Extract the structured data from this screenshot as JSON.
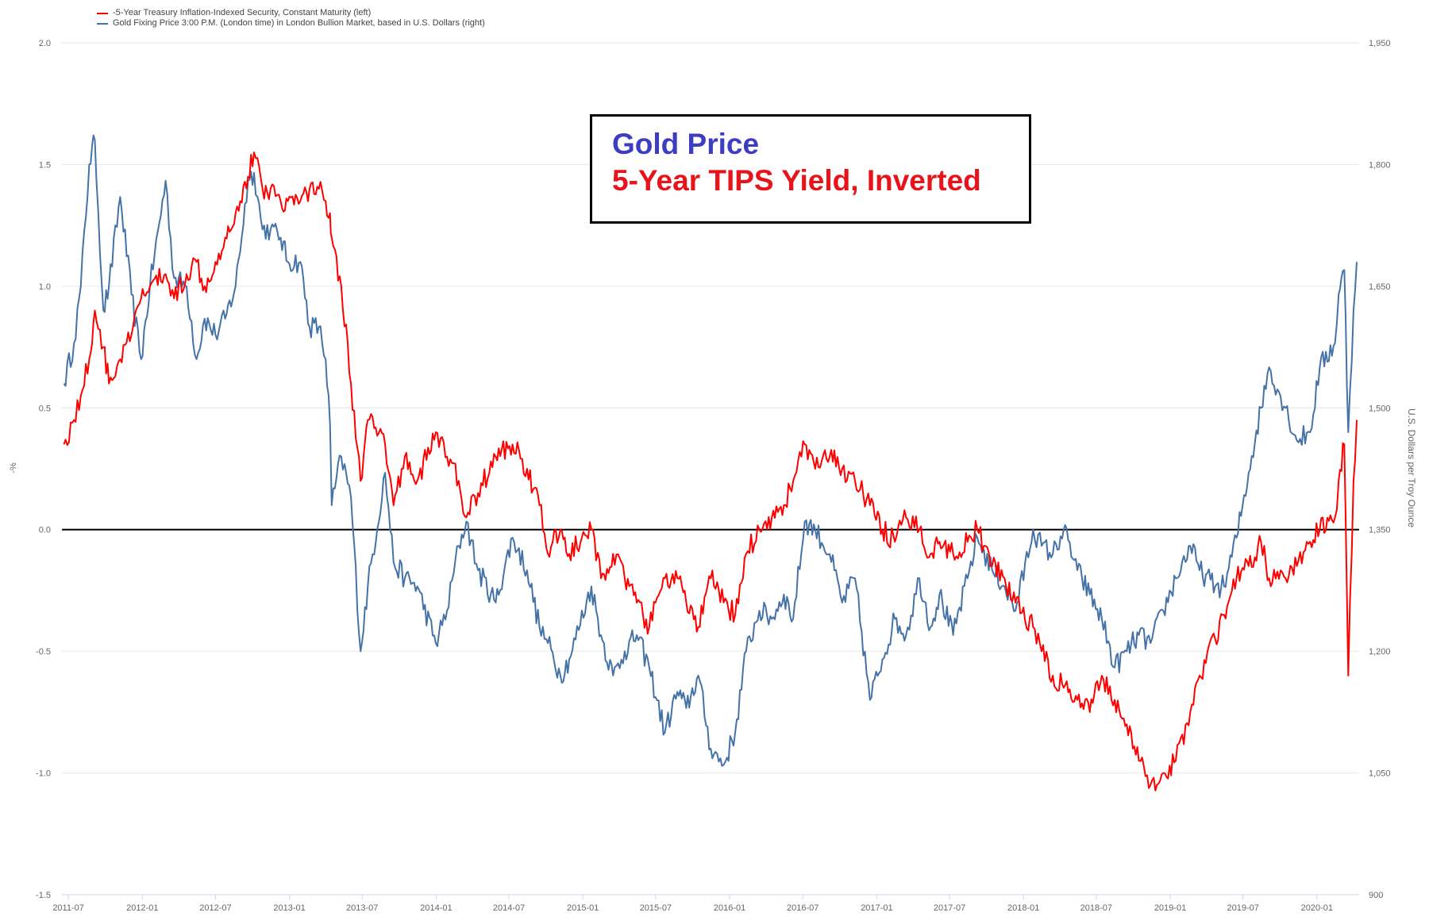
{
  "chart_data": {
    "type": "line",
    "title": "",
    "legend_position": "top-left",
    "series": [
      {
        "name": "-5-Year Treasury Inflation-Indexed Security, Constant Maturity (left)",
        "axis": "left",
        "color": "#ff0000"
      },
      {
        "name": "Gold Fixing Price 3:00 P.M. (London time) in London Bullion Market, based in U.S. Dollars (right)",
        "axis": "right",
        "color": "#4572a7"
      }
    ],
    "left_axis": {
      "label": "-%",
      "range": [
        -1.5,
        2.0
      ],
      "ticks": [
        "2.0",
        "1.5",
        "1.0",
        "0.5",
        "0.0",
        "-0.5",
        "-1.0",
        "-1.5"
      ],
      "tick_values": [
        2.0,
        1.5,
        1.0,
        0.5,
        0.0,
        -0.5,
        -1.0,
        -1.5
      ]
    },
    "right_axis": {
      "label": "U.S. Dollars per Troy Ounce",
      "range": [
        900,
        1950
      ],
      "ticks": [
        "1,950",
        "1,800",
        "1,650",
        "1,500",
        "1,350",
        "1,200",
        "1,050",
        "900"
      ],
      "tick_values": [
        1950,
        1800,
        1650,
        1500,
        1350,
        1200,
        1050,
        900
      ]
    },
    "x_axis": {
      "range": [
        "2011-06-15",
        "2020-04-15"
      ],
      "ticks": [
        "2011-07",
        "2012-01",
        "2012-07",
        "2013-01",
        "2013-07",
        "2014-01",
        "2014-07",
        "2015-01",
        "2015-07",
        "2016-01",
        "2016-07",
        "2017-01",
        "2017-07",
        "2018-01",
        "2018-07",
        "2019-01",
        "2019-07",
        "2020-01"
      ]
    },
    "zero_line": true,
    "grid": "horizontal",
    "data": {
      "dates": [
        "2011-06-20",
        "2011-07-15",
        "2011-08-01",
        "2011-08-22",
        "2011-09-05",
        "2011-09-26",
        "2011-10-10",
        "2011-11-07",
        "2011-12-05",
        "2011-12-29",
        "2012-01-20",
        "2012-02-28",
        "2012-03-20",
        "2012-04-20",
        "2012-05-15",
        "2012-06-04",
        "2012-07-01",
        "2012-07-25",
        "2012-08-20",
        "2012-09-20",
        "2012-10-05",
        "2012-10-26",
        "2012-11-15",
        "2012-12-10",
        "2012-12-28",
        "2013-01-28",
        "2013-02-20",
        "2013-03-15",
        "2013-04-01",
        "2013-04-12",
        "2013-04-16",
        "2013-05-10",
        "2013-06-03",
        "2013-06-27",
        "2013-07-15",
        "2013-08-27",
        "2013-09-17",
        "2013-10-15",
        "2013-11-15",
        "2013-12-31",
        "2014-01-28",
        "2014-02-26",
        "2014-03-17",
        "2014-04-15",
        "2014-05-29",
        "2014-07-10",
        "2014-08-15",
        "2014-09-15",
        "2014-10-06",
        "2014-11-06",
        "2014-11-28",
        "2015-01-22",
        "2015-02-15",
        "2015-03-17",
        "2015-04-15",
        "2015-05-15",
        "2015-06-15",
        "2015-07-24",
        "2015-08-24",
        "2015-09-15",
        "2015-10-15",
        "2015-11-15",
        "2015-12-17",
        "2016-01-15",
        "2016-02-11",
        "2016-03-15",
        "2016-04-15",
        "2016-05-15",
        "2016-06-07",
        "2016-07-06",
        "2016-08-01",
        "2016-09-06",
        "2016-10-07",
        "2016-11-08",
        "2016-12-15",
        "2017-01-15",
        "2017-02-15",
        "2017-03-15",
        "2017-04-17",
        "2017-05-15",
        "2017-06-06",
        "2017-07-10",
        "2017-08-15",
        "2017-09-08",
        "2017-10-15",
        "2017-11-15",
        "2017-12-12",
        "2018-01-25",
        "2018-02-15",
        "2018-03-15",
        "2018-04-11",
        "2018-05-15",
        "2018-06-15",
        "2018-07-15",
        "2018-08-16",
        "2018-09-15",
        "2018-10-15",
        "2018-11-13",
        "2018-12-15",
        "2019-01-15",
        "2019-02-20",
        "2019-03-15",
        "2019-04-23",
        "2019-05-15",
        "2019-06-15",
        "2019-07-15",
        "2019-08-15",
        "2019-09-04",
        "2019-10-15",
        "2019-11-12",
        "2019-12-15",
        "2020-01-08",
        "2020-02-15",
        "2020-02-24",
        "2020-03-09",
        "2020-03-19",
        "2020-04-01",
        "2020-04-09"
      ],
      "neg_tips_yield_pct": [
        0.35,
        0.45,
        0.55,
        0.7,
        0.9,
        0.75,
        0.6,
        0.7,
        0.8,
        0.95,
        1.0,
        1.05,
        0.95,
        1.05,
        1.1,
        1.0,
        1.1,
        1.2,
        1.3,
        1.45,
        1.55,
        1.4,
        1.4,
        1.35,
        1.35,
        1.35,
        1.4,
        1.4,
        1.35,
        1.3,
        1.2,
        1.0,
        0.6,
        0.2,
        0.45,
        0.35,
        0.1,
        0.3,
        0.2,
        0.4,
        0.3,
        0.2,
        0.05,
        0.15,
        0.3,
        0.35,
        0.25,
        0.1,
        -0.1,
        0.0,
        -0.1,
        0.0,
        -0.2,
        -0.1,
        -0.2,
        -0.3,
        -0.4,
        -0.2,
        -0.2,
        -0.3,
        -0.4,
        -0.2,
        -0.3,
        -0.35,
        -0.1,
        0.0,
        0.05,
        0.1,
        0.2,
        0.35,
        0.25,
        0.3,
        0.25,
        0.2,
        0.1,
        0.0,
        -0.05,
        0.05,
        0.0,
        -0.1,
        -0.05,
        -0.1,
        -0.05,
        0.0,
        -0.15,
        -0.2,
        -0.3,
        -0.4,
        -0.5,
        -0.6,
        -0.65,
        -0.7,
        -0.75,
        -0.6,
        -0.7,
        -0.8,
        -0.95,
        -1.05,
        -1.0,
        -0.95,
        -0.75,
        -0.6,
        -0.45,
        -0.35,
        -0.2,
        -0.15,
        -0.05,
        -0.2,
        -0.2,
        -0.15,
        -0.05,
        0.0,
        0.05,
        0.2,
        0.35,
        -0.6,
        0.2,
        0.45
      ],
      "gold_usd": [
        1530,
        1580,
        1650,
        1800,
        1830,
        1620,
        1650,
        1760,
        1640,
        1560,
        1650,
        1780,
        1660,
        1650,
        1560,
        1610,
        1590,
        1610,
        1650,
        1780,
        1790,
        1720,
        1720,
        1710,
        1680,
        1680,
        1600,
        1600,
        1560,
        1480,
        1380,
        1440,
        1390,
        1200,
        1280,
        1420,
        1310,
        1290,
        1280,
        1210,
        1250,
        1330,
        1360,
        1300,
        1260,
        1340,
        1300,
        1230,
        1210,
        1170,
        1190,
        1280,
        1220,
        1170,
        1200,
        1220,
        1180,
        1100,
        1150,
        1130,
        1170,
        1080,
        1060,
        1100,
        1200,
        1250,
        1240,
        1270,
        1240,
        1360,
        1350,
        1320,
        1260,
        1290,
        1140,
        1190,
        1240,
        1220,
        1290,
        1230,
        1270,
        1220,
        1290,
        1340,
        1300,
        1280,
        1250,
        1350,
        1330,
        1320,
        1350,
        1300,
        1270,
        1240,
        1180,
        1200,
        1220,
        1210,
        1250,
        1290,
        1330,
        1300,
        1280,
        1280,
        1340,
        1420,
        1500,
        1550,
        1500,
        1460,
        1470,
        1550,
        1580,
        1640,
        1670,
        1470,
        1620,
        1680
      ]
    }
  }
}
